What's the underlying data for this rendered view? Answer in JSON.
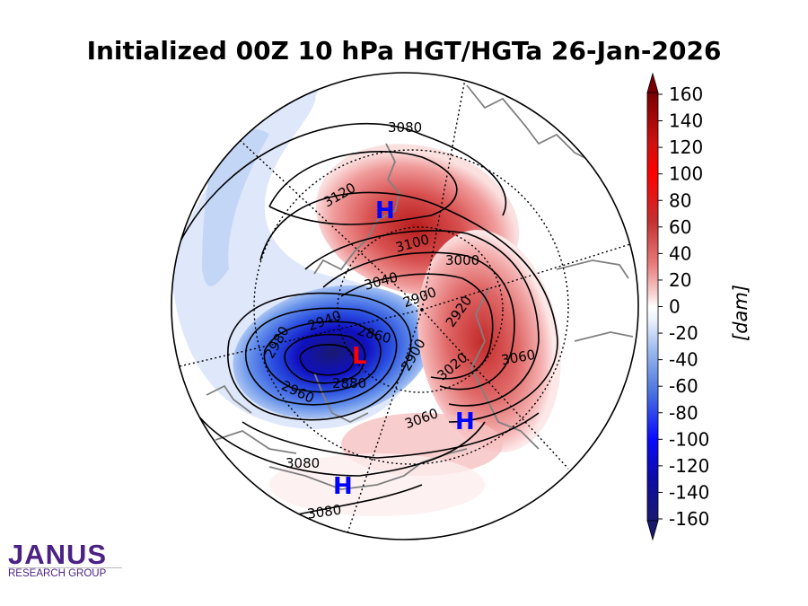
{
  "title": "Initialized 00Z 10 hPa HGT/HGTa 26-Jan-2026",
  "logo": {
    "main": "JANUS",
    "sub": "RESEARCH GROUP"
  },
  "colorbar": {
    "label": "[dam]",
    "ticks": [
      "160",
      "140",
      "120",
      "100",
      "80",
      "60",
      "40",
      "20",
      "0",
      "-20",
      "-40",
      "-60",
      "-80",
      "-100",
      "-120",
      "-140",
      "-160"
    ],
    "range": [
      -160,
      160
    ],
    "colors": {
      "min": "#191970",
      "neg_strong": "#0000ff",
      "neg_mid": "#4a74e0",
      "neg_light": "#c6d8f7",
      "zero": "#ffffff",
      "pos_light": "#f9d3d3",
      "pos_mid": "#e36a6a",
      "pos_strong": "#ff0000",
      "max": "#7a0000"
    }
  },
  "map": {
    "pressure_centers": [
      {
        "label": "H",
        "color": "#0000ff"
      },
      {
        "label": "H",
        "color": "#0000ff"
      },
      {
        "label": "H",
        "color": "#0000ff"
      },
      {
        "label": "L",
        "color": "#ff0000"
      }
    ],
    "contour_labels": [
      "3080",
      "3120",
      "3100",
      "3000",
      "3040",
      "2900",
      "2920",
      "2940",
      "2860",
      "2980",
      "2900",
      "3020",
      "3060",
      "2960",
      "2880",
      "3060",
      "3080",
      "3080"
    ]
  }
}
